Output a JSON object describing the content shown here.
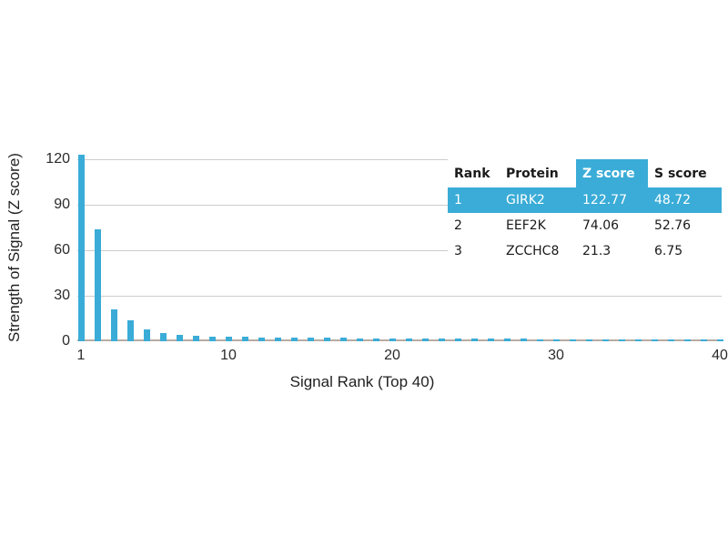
{
  "colors": {
    "accent": "#3aacd7",
    "grid": "#cccccc",
    "axis_line": "#b9aba3",
    "text": "#2b2b2b",
    "highlight_text": "#ffffff",
    "background": "#ffffff"
  },
  "chart_data": {
    "type": "bar",
    "title": "",
    "xlabel": "Signal Rank (Top 40)",
    "ylabel": "Strength of Signal (Z score)",
    "xticks": [
      1,
      10,
      20,
      30,
      40
    ],
    "yticks": [
      0,
      30,
      60,
      90,
      120
    ],
    "xlim": [
      1,
      40
    ],
    "ylim": [
      0,
      132
    ],
    "grid": true,
    "legend": "none",
    "bar_color": "#3aacd7",
    "x": [
      1,
      2,
      3,
      4,
      5,
      6,
      7,
      8,
      9,
      10,
      11,
      12,
      13,
      14,
      15,
      16,
      17,
      18,
      19,
      20,
      21,
      22,
      23,
      24,
      25,
      26,
      27,
      28,
      29,
      30,
      31,
      32,
      33,
      34,
      35,
      36,
      37,
      38,
      39,
      40
    ],
    "values": [
      122.77,
      74.06,
      21.3,
      13.8,
      7.8,
      5.4,
      4.2,
      3.6,
      3.2,
      3.0,
      2.8,
      2.6,
      2.5,
      2.4,
      2.3,
      2.2,
      2.2,
      2.1,
      2.0,
      2.0,
      1.9,
      1.9,
      1.8,
      1.8,
      1.7,
      1.7,
      1.6,
      1.6,
      1.5,
      1.5,
      1.5,
      1.4,
      1.4,
      1.4,
      1.3,
      1.3,
      1.3,
      1.2,
      1.2,
      1.2
    ]
  },
  "table": {
    "headers": [
      "Rank",
      "Protein",
      "Z score",
      "S score"
    ],
    "highlighted_header_index": 2,
    "rows": [
      {
        "rank": "1",
        "protein": "GIRK2",
        "z_score": "122.77",
        "s_score": "48.72",
        "highlighted": true
      },
      {
        "rank": "2",
        "protein": "EEF2K",
        "z_score": "74.06",
        "s_score": "52.76",
        "highlighted": false
      },
      {
        "rank": "3",
        "protein": "ZCCHC8",
        "z_score": "21.3",
        "s_score": "6.75",
        "highlighted": false
      }
    ]
  }
}
